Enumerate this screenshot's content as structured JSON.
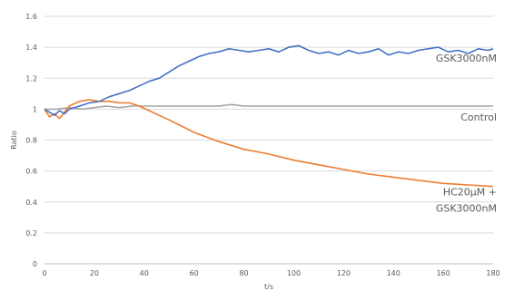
{
  "chart_data": {
    "type": "line",
    "title": "",
    "xlabel": "t/s",
    "ylabel": "Ratio",
    "xlim": [
      0,
      180
    ],
    "ylim": [
      0,
      1.6
    ],
    "x_ticks": [
      "0",
      "20",
      "40",
      "60",
      "80",
      "100",
      "120",
      "140",
      "160",
      "180"
    ],
    "y_ticks": [
      "0",
      "0.2",
      "0.4",
      "0.6",
      "0.8",
      "1",
      "1.2",
      "1.4",
      "1.6"
    ],
    "grid": "horizontal",
    "legend": "none",
    "series": [
      {
        "name": "GSK3000nM",
        "label_lines": [
          "GSK3000nM"
        ],
        "color": "#4472c4",
        "x": [
          0,
          2,
          4,
          6,
          8,
          10,
          14,
          18,
          22,
          26,
          30,
          34,
          38,
          42,
          46,
          50,
          54,
          58,
          62,
          66,
          70,
          74,
          78,
          82,
          86,
          90,
          94,
          98,
          102,
          106,
          110,
          114,
          118,
          122,
          126,
          130,
          134,
          138,
          142,
          146,
          150,
          154,
          158,
          162,
          166,
          170,
          174,
          178,
          180
        ],
        "y": [
          1.0,
          0.98,
          0.96,
          0.99,
          0.97,
          1.0,
          1.02,
          1.04,
          1.05,
          1.08,
          1.1,
          1.12,
          1.15,
          1.18,
          1.2,
          1.24,
          1.28,
          1.31,
          1.34,
          1.36,
          1.37,
          1.39,
          1.38,
          1.37,
          1.38,
          1.39,
          1.37,
          1.4,
          1.41,
          1.38,
          1.36,
          1.37,
          1.35,
          1.38,
          1.36,
          1.37,
          1.39,
          1.35,
          1.37,
          1.36,
          1.38,
          1.39,
          1.4,
          1.37,
          1.38,
          1.36,
          1.39,
          1.38,
          1.39
        ]
      },
      {
        "name": "Control",
        "label_lines": [
          "Control"
        ],
        "color": "#a5a5a5",
        "x": [
          0,
          5,
          10,
          15,
          20,
          25,
          30,
          35,
          40,
          45,
          50,
          60,
          70,
          75,
          80,
          90,
          100,
          110,
          120,
          130,
          140,
          150,
          160,
          170,
          180
        ],
        "y": [
          1.0,
          1.0,
          1.01,
          1.0,
          1.01,
          1.02,
          1.01,
          1.02,
          1.02,
          1.02,
          1.02,
          1.02,
          1.02,
          1.03,
          1.02,
          1.02,
          1.02,
          1.02,
          1.02,
          1.02,
          1.02,
          1.02,
          1.02,
          1.02,
          1.02
        ]
      },
      {
        "name": "HC20μM + GSK3000nM",
        "label_lines": [
          "HC20μM +",
          "GSK3000nM"
        ],
        "color": "#ed7d31",
        "x": [
          0,
          2,
          4,
          6,
          8,
          10,
          14,
          18,
          22,
          26,
          30,
          34,
          38,
          42,
          46,
          50,
          55,
          60,
          70,
          80,
          90,
          100,
          110,
          120,
          130,
          140,
          150,
          160,
          170,
          180
        ],
        "y": [
          1.0,
          0.95,
          0.97,
          0.94,
          0.98,
          1.02,
          1.05,
          1.06,
          1.05,
          1.05,
          1.04,
          1.04,
          1.02,
          0.99,
          0.96,
          0.93,
          0.89,
          0.85,
          0.79,
          0.74,
          0.71,
          0.67,
          0.64,
          0.61,
          0.58,
          0.56,
          0.54,
          0.52,
          0.51,
          0.5
        ]
      }
    ]
  }
}
